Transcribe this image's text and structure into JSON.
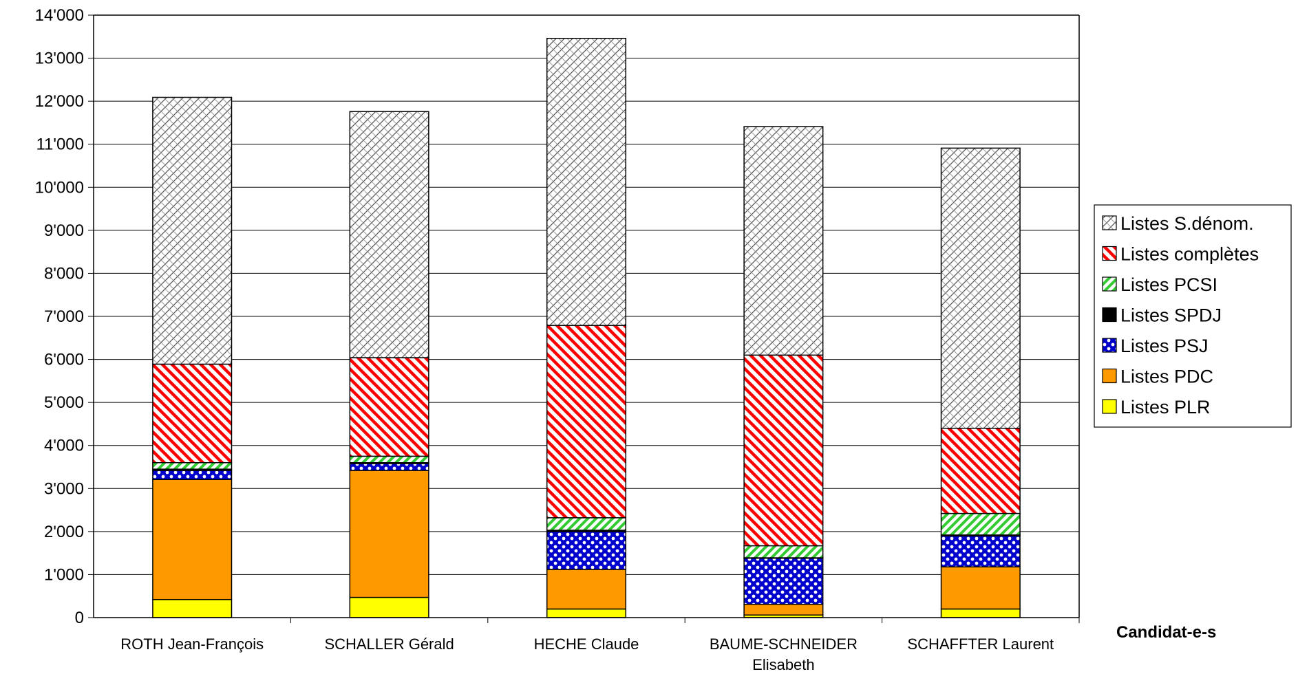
{
  "chart_data": {
    "type": "bar",
    "stacked": true,
    "xlabel": "Candidat-e-s",
    "ylim": [
      0,
      14000
    ],
    "ytick_step": 1000,
    "yticks": [
      "0",
      "1'000",
      "2'000",
      "3'000",
      "4'000",
      "5'000",
      "6'000",
      "7'000",
      "8'000",
      "9'000",
      "10'000",
      "11'000",
      "12'000",
      "13'000",
      "14'000"
    ],
    "categories": [
      [
        "ROTH Jean-François"
      ],
      [
        "SCHALLER Gérald"
      ],
      [
        "HECHE Claude"
      ],
      [
        "BAUME-SCHNEIDER",
        "Elisabeth"
      ],
      [
        "SCHAFFTER Laurent"
      ]
    ],
    "grid": true,
    "legend_position": "right",
    "series": [
      {
        "name": "Listes PLR",
        "color": "#ffff00",
        "pattern": "solid",
        "values": [
          420,
          470,
          200,
          60,
          200
        ]
      },
      {
        "name": "Listes PDC",
        "color": "#ff9900",
        "pattern": "solid",
        "values": [
          2790,
          2950,
          920,
          250,
          980
        ]
      },
      {
        "name": "Listes PSJ",
        "color": "#0000cc",
        "pattern": "dots",
        "values": [
          210,
          160,
          880,
          1070,
          720
        ]
      },
      {
        "name": "Listes SPDJ",
        "color": "#000000",
        "pattern": "solid",
        "values": [
          30,
          20,
          30,
          10,
          20
        ]
      },
      {
        "name": "Listes PCSI",
        "color": "#33cc33",
        "pattern": "diag-fwd",
        "values": [
          150,
          150,
          290,
          280,
          500
        ]
      },
      {
        "name": "Listes complètes",
        "color": "#ff0000",
        "pattern": "diag-back",
        "values": [
          2290,
          2290,
          4470,
          4430,
          1980
        ]
      },
      {
        "name": "Listes S.dénom.",
        "color": "#808080",
        "pattern": "lattice",
        "values": [
          6200,
          5720,
          6670,
          5310,
          6510
        ]
      }
    ]
  }
}
